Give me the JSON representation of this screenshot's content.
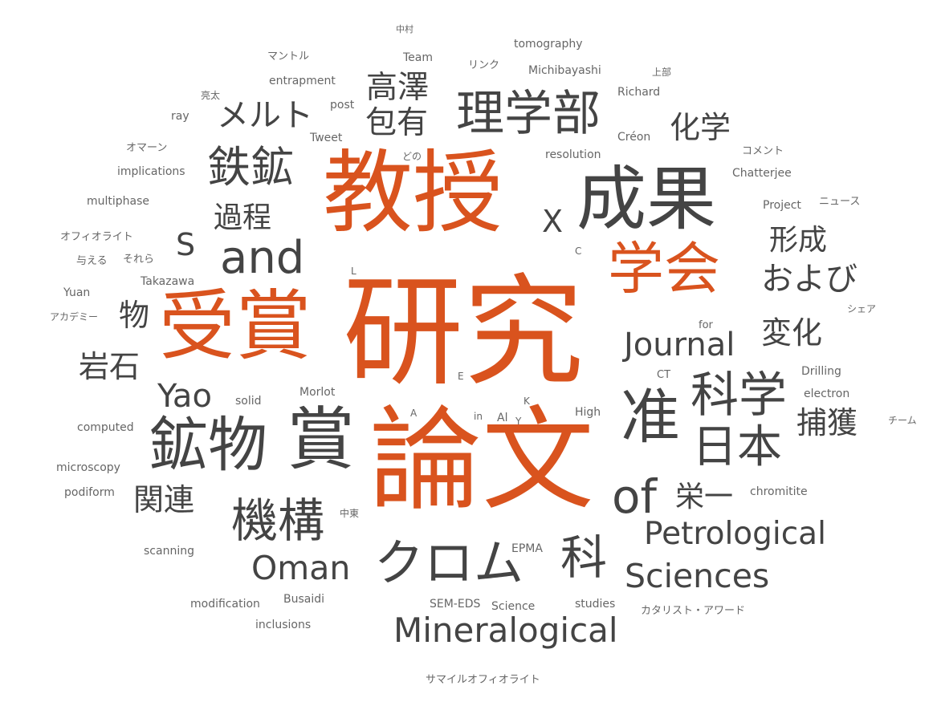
{
  "colors": {
    "accent": "#d9531e",
    "dark": "#444444",
    "light": "#666666"
  },
  "words": [
    {
      "text": "研究",
      "weight": 100,
      "color": "accent"
    },
    {
      "text": "論文",
      "weight": 92,
      "color": "accent"
    },
    {
      "text": "教授",
      "weight": 85,
      "color": "accent"
    },
    {
      "text": "受賞",
      "weight": 78,
      "color": "accent"
    },
    {
      "text": "学会",
      "weight": 70,
      "color": "accent"
    },
    {
      "text": "成果",
      "weight": 72,
      "color": "dark"
    },
    {
      "text": "賞",
      "weight": 60,
      "color": "dark"
    },
    {
      "text": "鉱物",
      "weight": 58,
      "color": "dark"
    },
    {
      "text": "准",
      "weight": 55,
      "color": "dark"
    },
    {
      "text": "and",
      "weight": 50,
      "color": "dark"
    },
    {
      "text": "理学部",
      "weight": 48,
      "color": "dark"
    },
    {
      "text": "鉄鉱",
      "weight": 46,
      "color": "dark"
    },
    {
      "text": "クロム",
      "weight": 46,
      "color": "dark"
    },
    {
      "text": "機構",
      "weight": 46,
      "color": "dark"
    },
    {
      "text": "科学",
      "weight": 45,
      "color": "dark"
    },
    {
      "text": "日本",
      "weight": 45,
      "color": "dark"
    },
    {
      "text": "科",
      "weight": 45,
      "color": "dark"
    },
    {
      "text": "of",
      "weight": 44,
      "color": "dark"
    },
    {
      "text": "Mineralogical",
      "weight": 40,
      "color": "dark"
    },
    {
      "text": "Petrological",
      "weight": 38,
      "color": "dark"
    },
    {
      "text": "Sciences",
      "weight": 38,
      "color": "dark"
    },
    {
      "text": "Oman",
      "weight": 38,
      "color": "dark"
    },
    {
      "text": "高澤",
      "weight": 38,
      "color": "dark"
    },
    {
      "text": "包有",
      "weight": 38,
      "color": "dark"
    },
    {
      "text": "メルト",
      "weight": 38,
      "color": "dark"
    },
    {
      "text": "および",
      "weight": 38,
      "color": "dark"
    },
    {
      "text": "Journal",
      "weight": 36,
      "color": "dark"
    },
    {
      "text": "Yao",
      "weight": 36,
      "color": "dark"
    },
    {
      "text": "化学",
      "weight": 36,
      "color": "dark"
    },
    {
      "text": "変化",
      "weight": 36,
      "color": "dark"
    },
    {
      "text": "捕獲",
      "weight": 36,
      "color": "dark"
    },
    {
      "text": "形成",
      "weight": 36,
      "color": "dark"
    },
    {
      "text": "過程",
      "weight": 36,
      "color": "dark"
    },
    {
      "text": "岩石",
      "weight": 36,
      "color": "dark"
    },
    {
      "text": "関連",
      "weight": 36,
      "color": "dark"
    },
    {
      "text": "栄一",
      "weight": 34,
      "color": "dark"
    },
    {
      "text": "物",
      "weight": 34,
      "color": "dark"
    },
    {
      "text": "X",
      "weight": 34,
      "color": "dark"
    },
    {
      "text": "S",
      "weight": 34,
      "color": "dark"
    },
    {
      "text": "中村",
      "weight": 10,
      "color": "light"
    },
    {
      "text": "tomography",
      "weight": 12,
      "color": "light"
    },
    {
      "text": "Team",
      "weight": 12,
      "color": "light"
    },
    {
      "text": "マントル",
      "weight": 11,
      "color": "light"
    },
    {
      "text": "リンク",
      "weight": 11,
      "color": "light"
    },
    {
      "text": "Michibayashi",
      "weight": 12,
      "color": "light"
    },
    {
      "text": "上部",
      "weight": 10,
      "color": "light"
    },
    {
      "text": "entrapment",
      "weight": 12,
      "color": "light"
    },
    {
      "text": "亮太",
      "weight": 10,
      "color": "light"
    },
    {
      "text": "post",
      "weight": 11,
      "color": "light"
    },
    {
      "text": "Richard",
      "weight": 12,
      "color": "light"
    },
    {
      "text": "ray",
      "weight": 11,
      "color": "light"
    },
    {
      "text": "Tweet",
      "weight": 12,
      "color": "light"
    },
    {
      "text": "Créon",
      "weight": 12,
      "color": "light"
    },
    {
      "text": "オマーン",
      "weight": 11,
      "color": "light"
    },
    {
      "text": "どの",
      "weight": 10,
      "color": "light"
    },
    {
      "text": "resolution",
      "weight": 12,
      "color": "light"
    },
    {
      "text": "コメント",
      "weight": 11,
      "color": "light"
    },
    {
      "text": "implications",
      "weight": 12,
      "color": "light"
    },
    {
      "text": "Chatterjee",
      "weight": 12,
      "color": "light"
    },
    {
      "text": "multiphase",
      "weight": 12,
      "color": "light"
    },
    {
      "text": "Project",
      "weight": 12,
      "color": "light"
    },
    {
      "text": "ニュース",
      "weight": 11,
      "color": "light"
    },
    {
      "text": "オフィオライト",
      "weight": 11,
      "color": "light"
    },
    {
      "text": "与える",
      "weight": 11,
      "color": "light"
    },
    {
      "text": "それら",
      "weight": 11,
      "color": "light"
    },
    {
      "text": "C",
      "weight": 11,
      "color": "light"
    },
    {
      "text": "L",
      "weight": 11,
      "color": "light"
    },
    {
      "text": "Takazawa",
      "weight": 12,
      "color": "light"
    },
    {
      "text": "Yuan",
      "weight": 12,
      "color": "light"
    },
    {
      "text": "シェア",
      "weight": 10,
      "color": "light"
    },
    {
      "text": "アカデミー",
      "weight": 10,
      "color": "light"
    },
    {
      "text": "for",
      "weight": 11,
      "color": "light"
    },
    {
      "text": "CT",
      "weight": 11,
      "color": "light"
    },
    {
      "text": "Drilling",
      "weight": 12,
      "color": "light"
    },
    {
      "text": "E",
      "weight": 11,
      "color": "light"
    },
    {
      "text": "electron",
      "weight": 12,
      "color": "light"
    },
    {
      "text": "solid",
      "weight": 12,
      "color": "light"
    },
    {
      "text": "Morlot",
      "weight": 12,
      "color": "light"
    },
    {
      "text": "K",
      "weight": 11,
      "color": "light"
    },
    {
      "text": "A",
      "weight": 11,
      "color": "light"
    },
    {
      "text": "in",
      "weight": 11,
      "color": "light"
    },
    {
      "text": "Al",
      "weight": 12,
      "color": "light"
    },
    {
      "text": "Y",
      "weight": 11,
      "color": "light"
    },
    {
      "text": "High",
      "weight": 12,
      "color": "light"
    },
    {
      "text": "チーム",
      "weight": 11,
      "color": "light"
    },
    {
      "text": "computed",
      "weight": 12,
      "color": "light"
    },
    {
      "text": "microscopy",
      "weight": 12,
      "color": "light"
    },
    {
      "text": "podiform",
      "weight": 12,
      "color": "light"
    },
    {
      "text": "chromitite",
      "weight": 12,
      "color": "light"
    },
    {
      "text": "中東",
      "weight": 10,
      "color": "light"
    },
    {
      "text": "scanning",
      "weight": 12,
      "color": "light"
    },
    {
      "text": "EPMA",
      "weight": 12,
      "color": "light"
    },
    {
      "text": "modification",
      "weight": 12,
      "color": "light"
    },
    {
      "text": "Busaidi",
      "weight": 12,
      "color": "light"
    },
    {
      "text": "SEM-EDS",
      "weight": 12,
      "color": "light"
    },
    {
      "text": "Science",
      "weight": 12,
      "color": "light"
    },
    {
      "text": "studies",
      "weight": 12,
      "color": "light"
    },
    {
      "text": "カタリスト・アワード",
      "weight": 11,
      "color": "light"
    },
    {
      "text": "inclusions",
      "weight": 12,
      "color": "light"
    },
    {
      "text": "サマイルオフィオライト",
      "weight": 11,
      "color": "light"
    }
  ]
}
